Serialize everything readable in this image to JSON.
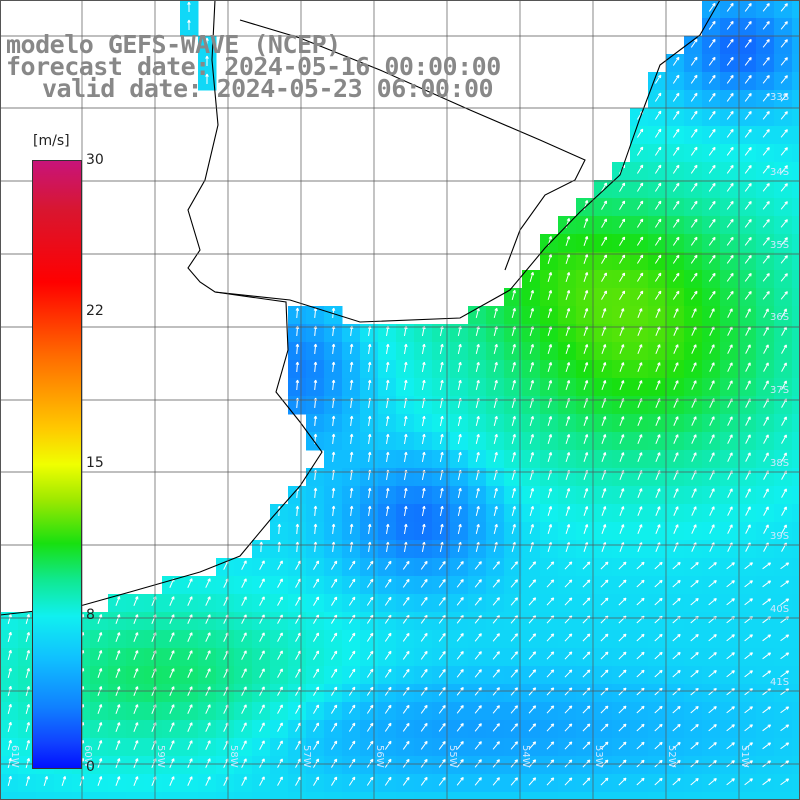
{
  "title": {
    "line1": "modelo GEFS-WAVE (NCEP)",
    "line2": "forecast date: 2024-05-16 00:00:00",
    "line3": "valid date: 2024-05-23 06:00:00"
  },
  "colorbar": {
    "unit": "[m/s]",
    "ticks": [
      "30",
      "22",
      "15",
      "8",
      "0"
    ],
    "range": [
      0,
      30
    ]
  },
  "map": {
    "variable": "wind speed with direction arrows",
    "land_color": "#ffffff",
    "coastline_color": "#000000",
    "grid_color": "#555555",
    "lat_labels": [
      "33S",
      "34S",
      "35S",
      "36S",
      "37S",
      "38S",
      "39S",
      "40S",
      "41S"
    ],
    "lon_labels": [
      "61W",
      "60W",
      "59W",
      "58W",
      "57W",
      "56W",
      "55W",
      "54W",
      "53W",
      "52W",
      "51W"
    ]
  }
}
